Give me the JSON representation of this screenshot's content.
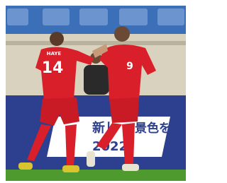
{
  "photo": {
    "jersey_name": "HAYE",
    "jersey_number_left": "14",
    "jersey_number_right": "9",
    "banner": {
      "line1_left": "新し",
      "line1_right": "景色を",
      "line2": "2022"
    }
  }
}
